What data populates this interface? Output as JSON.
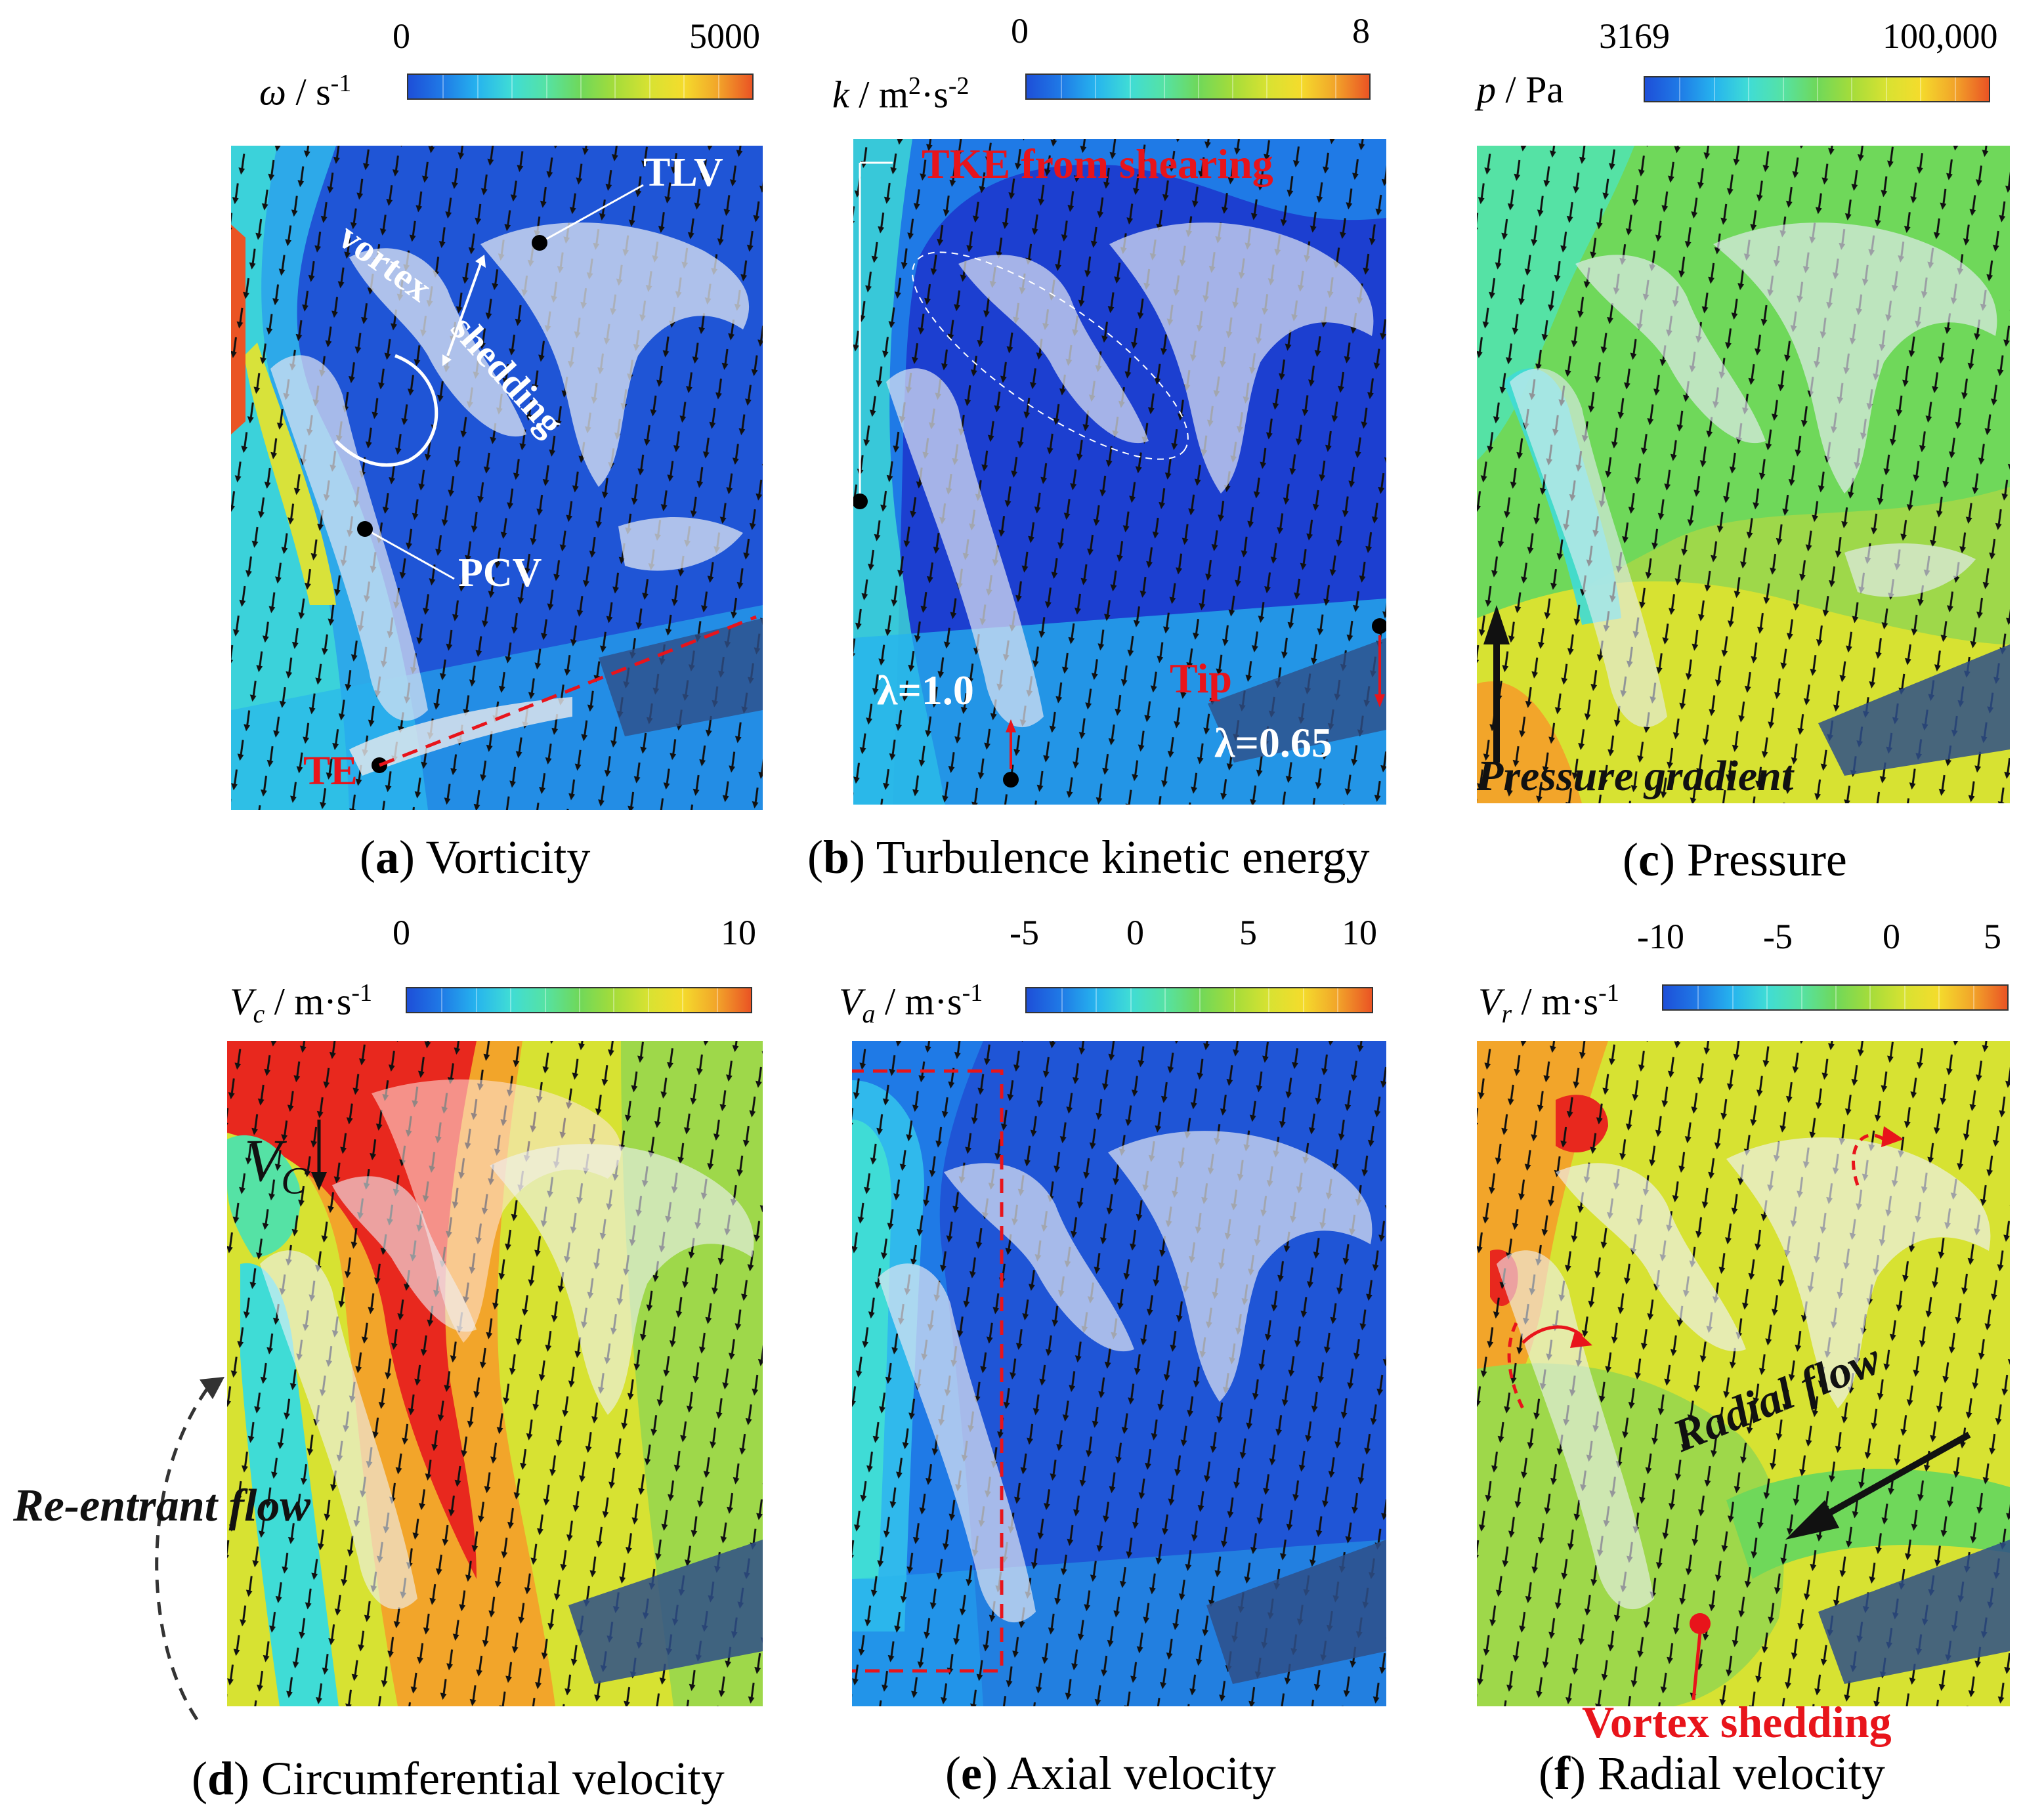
{
  "panels": [
    {
      "id": "a",
      "letter": "a",
      "title": "Vorticity",
      "symbol": "ω",
      "unit": " / s",
      "sup": "-1",
      "sub": "",
      "ticks": [
        "0",
        "5000"
      ]
    },
    {
      "id": "b",
      "letter": "b",
      "title": "Turbulence kinetic energy",
      "symbol": "k",
      "unit": " / m",
      "sup": "2",
      "sub": "",
      "unit2": "·s",
      "sup2": "-2",
      "ticks": [
        "0",
        "8"
      ]
    },
    {
      "id": "c",
      "letter": "c",
      "title": "Pressure",
      "symbol": "p",
      "unit": " / Pa",
      "sup": "",
      "sub": "",
      "ticks": [
        "3169",
        "100,000"
      ]
    },
    {
      "id": "d",
      "letter": "d",
      "title": "Circumferential velocity",
      "symbol": "V",
      "unit": " / m·s",
      "sup": "-1",
      "sub": "c",
      "ticks": [
        "0",
        "10"
      ]
    },
    {
      "id": "e",
      "letter": "e",
      "title": "Axial velocity",
      "symbol": "V",
      "unit": " / m·s",
      "sup": "-1",
      "sub": "a",
      "ticks": [
        "-5",
        "0",
        "5",
        "10"
      ]
    },
    {
      "id": "f",
      "letter": "f",
      "title": "Radial velocity",
      "symbol": "V",
      "unit": " / m·s",
      "sup": "-1",
      "sub": "r",
      "ticks": [
        "-10",
        "-5",
        "0",
        "5"
      ]
    }
  ],
  "annotations": {
    "tlv": "TLV",
    "vortex": "vortex",
    "shedding": "shedding",
    "pcv": "PCV",
    "te": "TE",
    "tke_shearing": "TKE from shearing",
    "lambda_10": "λ=1.0",
    "tip": "Tip",
    "lambda_065": "λ=0.65",
    "pressure_gradient": "Pressure gradient",
    "vc": "V",
    "vc_sub": "C",
    "reentrant": "Re-entrant flow",
    "radial_flow": "Radial flow",
    "vortex_shedding": "Vortex shedding"
  },
  "colors": {
    "red_annotation": "#e8141b",
    "white_annotation": "#ffffff",
    "bg_blue": "#1f55d6"
  }
}
